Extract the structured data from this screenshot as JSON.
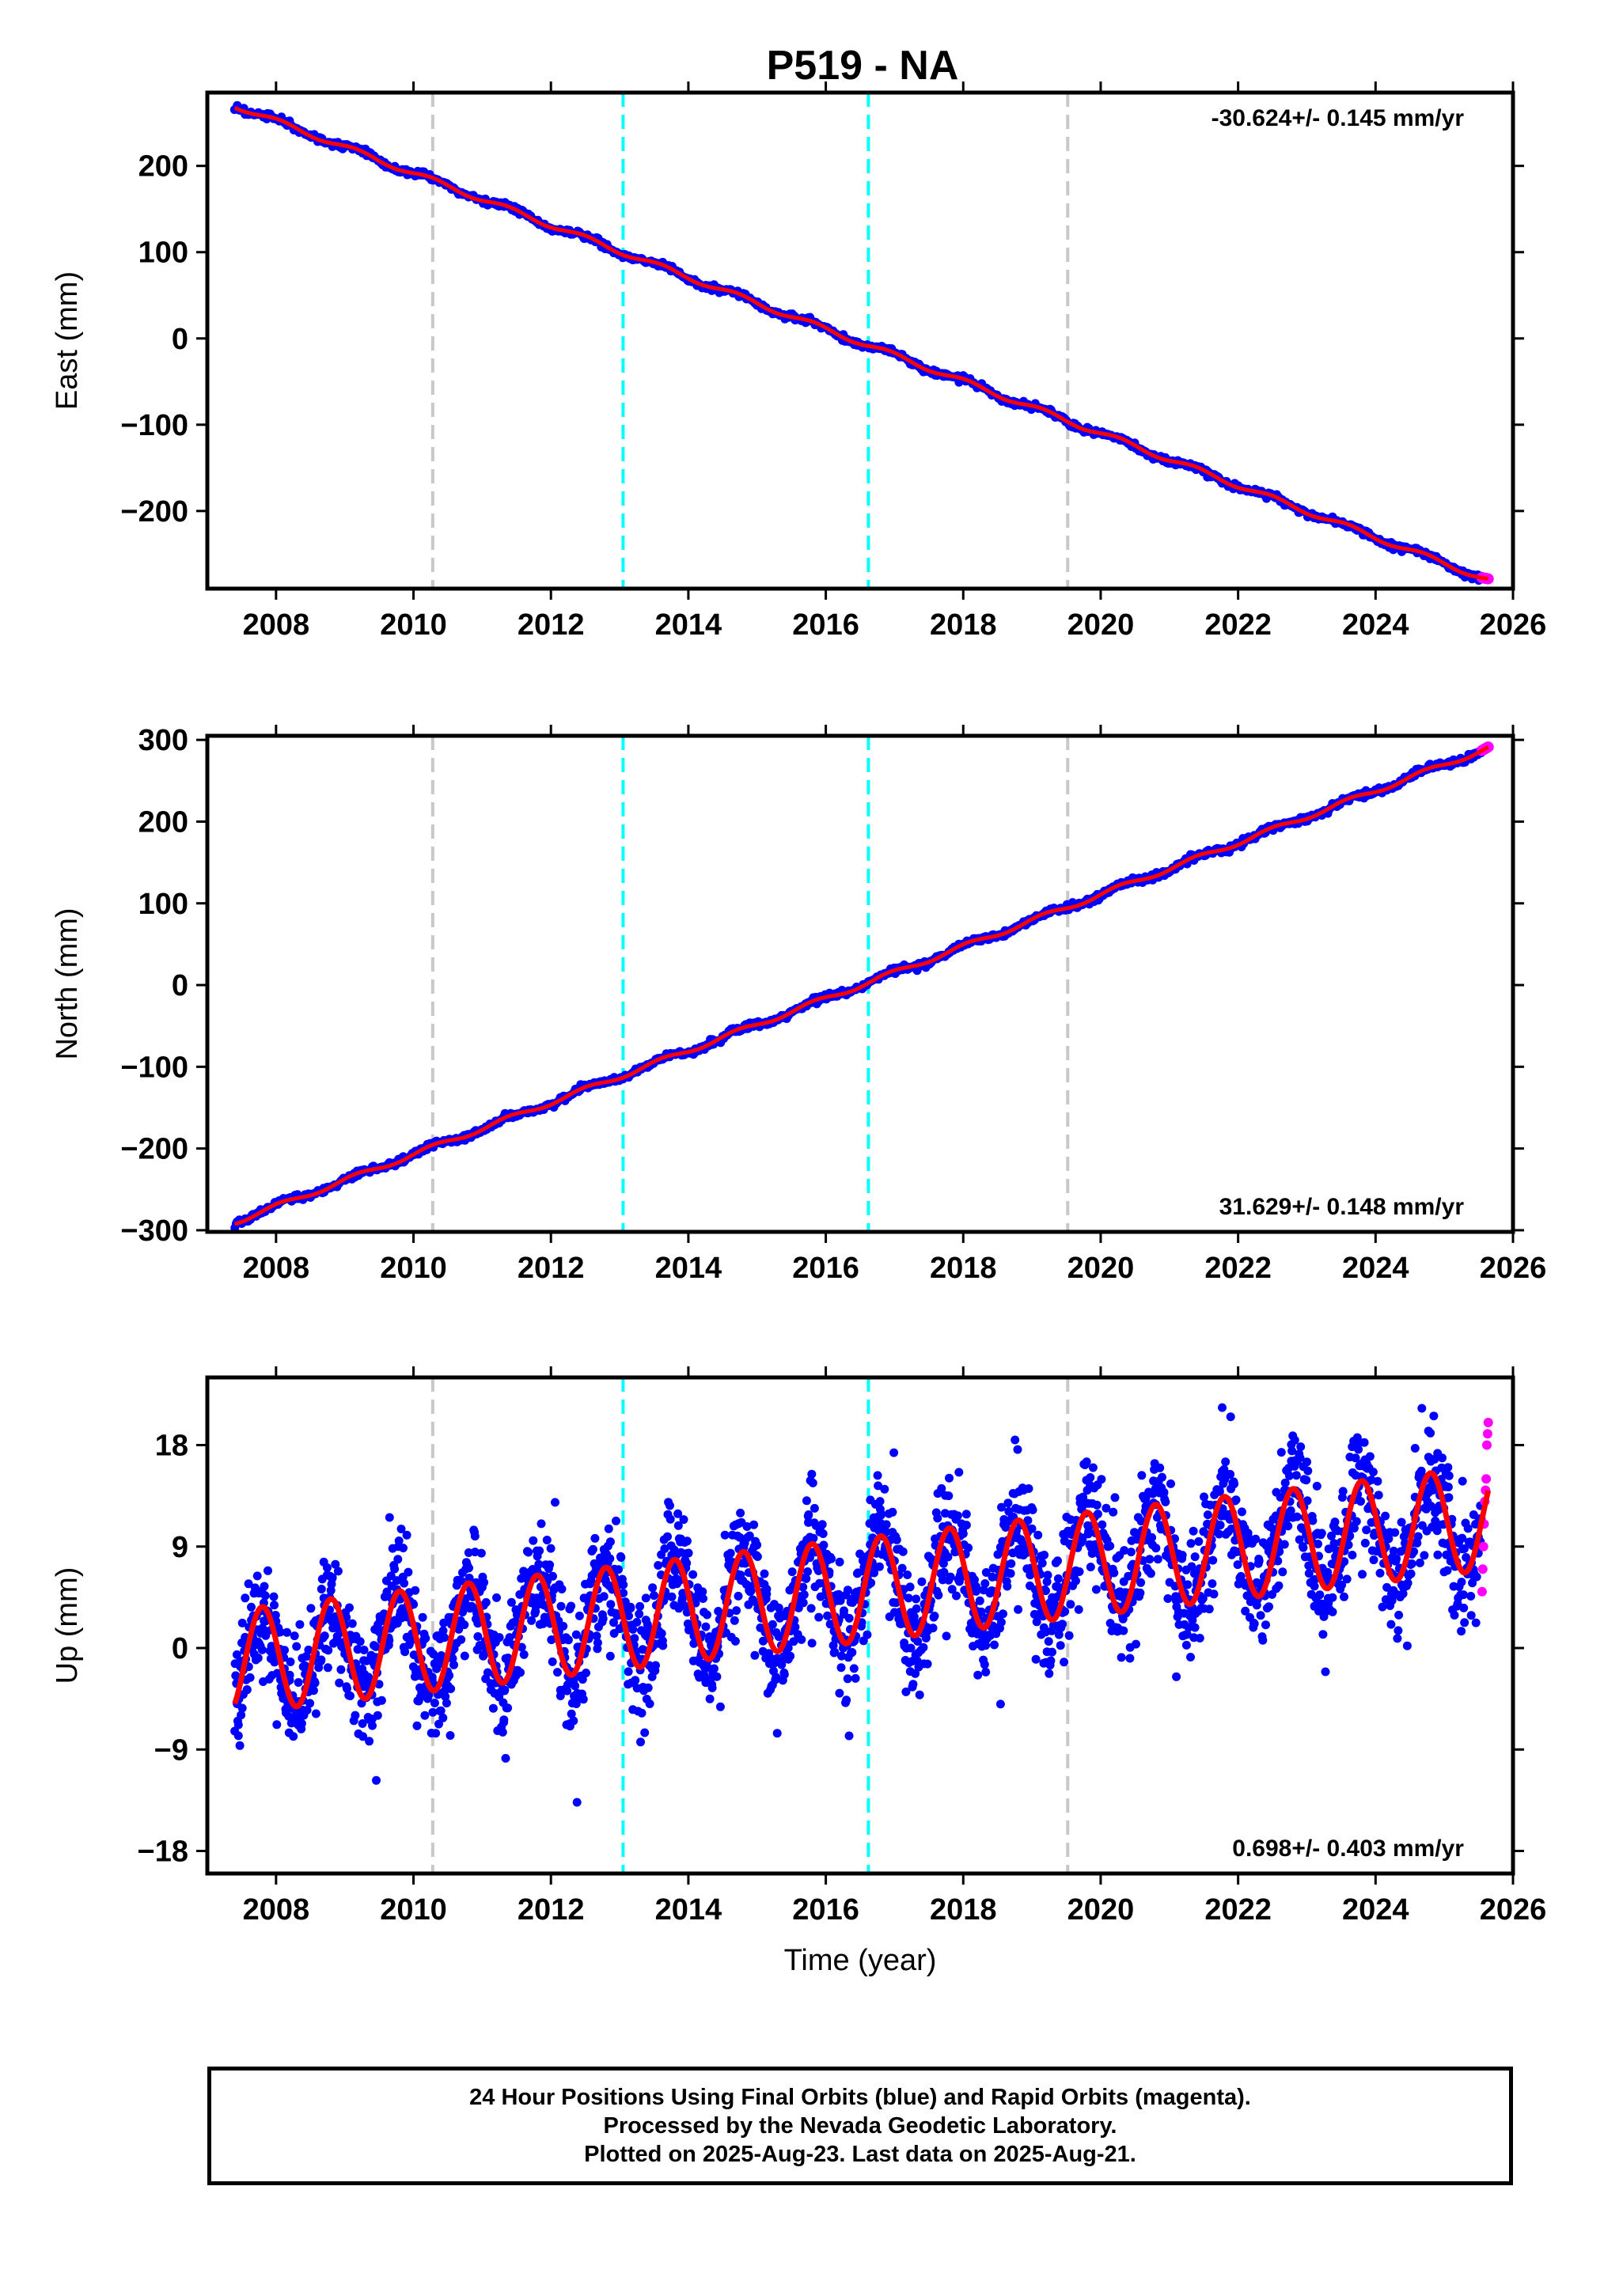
{
  "title": "P519 - NA",
  "colors": {
    "final_orbits": "#0000ff",
    "rapid_orbits": "#ff00ff",
    "model_fit": "#ff0000",
    "event_gray": "#c8c8c8",
    "event_cyan": "#00ffff"
  },
  "chart_data": [
    {
      "type": "scatter",
      "title": "P519 - NA",
      "xlabel": "",
      "ylabel": "East (mm)",
      "xlim": [
        2007.0,
        2026.0
      ],
      "ylim": [
        -290,
        285
      ],
      "x_ticks": [
        2008,
        2010,
        2012,
        2014,
        2016,
        2018,
        2020,
        2022,
        2024,
        2026
      ],
      "x_tick_labels": [
        "2008",
        "2010",
        "2012",
        "2014",
        "2016",
        "2018",
        "2020",
        "2022",
        "2024",
        "2026"
      ],
      "y_ticks": [
        -200,
        -100,
        0,
        100,
        200
      ],
      "y_tick_labels": [
        "−200",
        "−100",
        "0",
        "100",
        "200"
      ],
      "rate_text": "-30.624+/- 0.145 mm/yr",
      "rate_position": "top-right",
      "trend": {
        "x": [
          2007.4,
          2025.64
        ],
        "y": [
          270,
          -280
        ]
      },
      "data_range": [
        2007.4,
        2025.55
      ],
      "rapid_range": [
        2025.55,
        2025.64
      ],
      "scatter_noise": 2.5,
      "event_lines": [
        {
          "x": 2010.28,
          "color": "gray"
        },
        {
          "x": 2013.05,
          "color": "cyan"
        },
        {
          "x": 2016.62,
          "color": "cyan"
        },
        {
          "x": 2019.52,
          "color": "gray"
        }
      ],
      "series": [
        {
          "name": "Final Orbits",
          "color": "blue"
        },
        {
          "name": "Rapid Orbits",
          "color": "magenta"
        },
        {
          "name": "",
          "color": "red"
        }
      ]
    },
    {
      "type": "scatter",
      "xlabel": "",
      "ylabel": "North (mm)",
      "xlim": [
        2007.0,
        2026.0
      ],
      "ylim": [
        -302,
        305
      ],
      "x_ticks": [
        2008,
        2010,
        2012,
        2014,
        2016,
        2018,
        2020,
        2022,
        2024,
        2026
      ],
      "x_tick_labels": [
        "2008",
        "2010",
        "2012",
        "2014",
        "2016",
        "2018",
        "2020",
        "2022",
        "2024",
        "2026"
      ],
      "y_ticks": [
        -300,
        -200,
        -100,
        0,
        100,
        200,
        300
      ],
      "y_tick_labels": [
        "−300",
        "−200",
        "−100",
        "0",
        "100",
        "200",
        "300"
      ],
      "rate_text": "31.629+/- 0.148 mm/yr",
      "rate_position": "bottom-right",
      "trend": {
        "x": [
          2007.4,
          2025.64
        ],
        "y": [
          -290,
          290
        ]
      },
      "data_range": [
        2007.4,
        2025.55
      ],
      "rapid_range": [
        2025.55,
        2025.64
      ],
      "scatter_noise": 2.8,
      "event_lines": [
        {
          "x": 2010.28,
          "color": "gray"
        },
        {
          "x": 2013.05,
          "color": "cyan"
        },
        {
          "x": 2016.62,
          "color": "cyan"
        },
        {
          "x": 2019.52,
          "color": "gray"
        }
      ],
      "series": [
        {
          "name": "Final Orbits",
          "color": "blue"
        },
        {
          "name": "Rapid Orbits",
          "color": "magenta"
        },
        {
          "name": "",
          "color": "red"
        }
      ]
    },
    {
      "type": "scatter",
      "xlabel": "Time (year)",
      "ylabel": "Up (mm)",
      "xlim": [
        2007.0,
        2026.0
      ],
      "ylim": [
        -20,
        24
      ],
      "x_ticks": [
        2008,
        2010,
        2012,
        2014,
        2016,
        2018,
        2020,
        2022,
        2024,
        2026
      ],
      "x_tick_labels": [
        "2008",
        "2010",
        "2012",
        "2014",
        "2016",
        "2018",
        "2020",
        "2022",
        "2024",
        "2026"
      ],
      "y_ticks": [
        -18,
        -9,
        0,
        9,
        18
      ],
      "y_tick_labels": [
        "−18",
        "−9",
        "0",
        "9",
        "18"
      ],
      "rate_text": "0.698+/- 0.403 mm/yr",
      "rate_position": "bottom-right",
      "seasonal_model": {
        "intercept_2007": -1.5,
        "rate": 0.698,
        "amplitude": 4.6,
        "phase_year": 0.55
      },
      "data_range": [
        2007.4,
        2025.55
      ],
      "rapid_range": [
        2025.55,
        2025.64
      ],
      "rapid_values": [
        5,
        7,
        9,
        11,
        13,
        14,
        15,
        18,
        19,
        20
      ],
      "scatter_noise": 3.6,
      "event_lines": [
        {
          "x": 2010.28,
          "color": "gray"
        },
        {
          "x": 2013.05,
          "color": "cyan"
        },
        {
          "x": 2016.62,
          "color": "cyan"
        },
        {
          "x": 2019.52,
          "color": "gray"
        }
      ],
      "series": [
        {
          "name": "Final Orbits",
          "color": "blue"
        },
        {
          "name": "Rapid Orbits",
          "color": "magenta"
        },
        {
          "name": "",
          "color": "red"
        }
      ]
    }
  ],
  "caption": {
    "line1": "24 Hour Positions Using Final Orbits (blue) and Rapid Orbits (magenta).",
    "line2": "Processed by the Nevada Geodetic Laboratory.",
    "line3": "Plotted on 2025-Aug-23. Last data on 2025-Aug-21."
  }
}
